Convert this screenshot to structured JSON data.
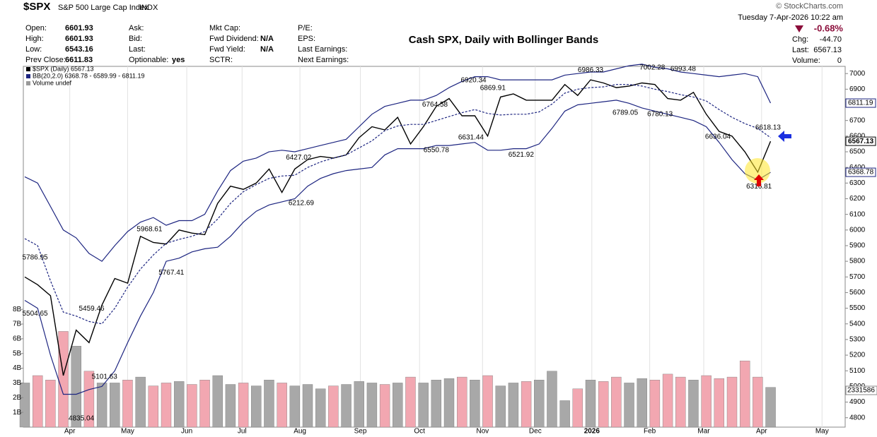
{
  "header": {
    "symbol": "$SPX",
    "name": "S&P 500 Large Cap Index",
    "exchange": "INDX",
    "copyright": "© StockCharts.com",
    "datetime": "Tuesday  7-Apr-2026  10:22 am",
    "columns": [
      [
        [
          "Open:",
          "6601.93"
        ],
        [
          "High:",
          "6601.93"
        ],
        [
          "Low:",
          "6543.16"
        ],
        [
          "Prev Close:",
          "6611.83"
        ]
      ],
      [
        [
          "Ask:"
        ],
        [
          "Bid:"
        ],
        [
          "Last:"
        ],
        [
          "Optionable:",
          "yes"
        ]
      ],
      [
        [
          "Mkt Cap:"
        ],
        [
          "Fwd Dividend:",
          "N/A"
        ],
        [
          "Fwd Yield:",
          "N/A"
        ],
        [
          "SCTR:"
        ]
      ],
      [
        [
          "P/E:"
        ],
        [
          "EPS:"
        ],
        [
          "Last Earnings:"
        ],
        [
          "Next Earnings:"
        ]
      ]
    ],
    "change_pct": "-0.68%",
    "stats": [
      [
        "Chg:",
        "-44.70"
      ],
      [
        "Last:",
        "6567.13"
      ],
      [
        "Volume:",
        "0"
      ]
    ],
    "volume_tag": "2331586"
  },
  "chart_data": {
    "type": "line",
    "title": "Cash SPX, Daily with Bollinger Bands",
    "legend": [
      "$SPX (Daily) 6567.13",
      "BB(20,2.0) 6368.78 - 6589.99 - 6811.19",
      "Volume undef"
    ],
    "xlim": [
      0,
      63.8
    ],
    "xticks": [
      {
        "value": 3.5,
        "label": "Apr"
      },
      {
        "value": 8.0,
        "label": "May"
      },
      {
        "value": 12.6,
        "label": "Jun"
      },
      {
        "value": 16.9,
        "label": "Jul"
      },
      {
        "value": 21.4,
        "label": "Aug"
      },
      {
        "value": 26.1,
        "label": "Sep"
      },
      {
        "value": 30.7,
        "label": "Oct"
      },
      {
        "value": 35.6,
        "label": "Nov"
      },
      {
        "value": 39.7,
        "label": "Dec"
      },
      {
        "value": 44.1,
        "label": "2026"
      },
      {
        "value": 48.6,
        "label": "Feb"
      },
      {
        "value": 52.8,
        "label": "Mar"
      },
      {
        "value": 57.3,
        "label": "Apr"
      },
      {
        "value": 62.0,
        "label": "May"
      }
    ],
    "ylim": [
      4740,
      7046
    ],
    "yticks": [
      4800,
      4900,
      5000,
      5100,
      5200,
      5300,
      5400,
      5500,
      5600,
      5700,
      5800,
      5900,
      6000,
      6100,
      6200,
      6300,
      6400,
      6500,
      6600,
      6700,
      6800,
      6900,
      7000
    ],
    "y2lim": [
      0,
      24.5
    ],
    "y2ticks": [
      {
        "value": 1,
        "label": "1B"
      },
      {
        "value": 2,
        "label": "2B"
      },
      {
        "value": 3,
        "label": "3B"
      },
      {
        "value": 4,
        "label": "4B"
      },
      {
        "value": 5,
        "label": "5B"
      },
      {
        "value": 6,
        "label": "6B"
      },
      {
        "value": 7,
        "label": "7B"
      },
      {
        "value": 8,
        "label": "8B"
      }
    ],
    "series": [
      {
        "color": "#000000",
        "values": [
          5700,
          5650,
          5580,
          5070,
          5360,
          5280,
          5520,
          5690,
          5660,
          5960,
          5920,
          5910,
          6000,
          5980,
          5970,
          6170,
          6280,
          6260,
          6300,
          6390,
          6240,
          6390,
          6450,
          6470,
          6460,
          6480,
          6590,
          6660,
          6640,
          6720,
          6550,
          6660,
          6790,
          6840,
          6730,
          6730,
          6600,
          6850,
          6870,
          6830,
          6830,
          6830,
          6930,
          6860,
          6960,
          6940,
          6910,
          6920,
          6940,
          6930,
          6840,
          6830,
          6880,
          6740,
          6630,
          6600,
          6500,
          6370,
          6567.13
        ]
      },
      {
        "color": "#1c2480",
        "values": [
          6340,
          6300,
          6150,
          6000,
          5950,
          5850,
          5800,
          5900,
          5990,
          6050,
          6080,
          6030,
          6060,
          6060,
          6100,
          6250,
          6380,
          6440,
          6460,
          6500,
          6510,
          6500,
          6520,
          6540,
          6560,
          6580,
          6660,
          6740,
          6790,
          6810,
          6830,
          6830,
          6860,
          6910,
          6950,
          6980,
          6980,
          6960,
          6960,
          6960,
          6960,
          6960,
          6990,
          7000,
          7010,
          7010,
          7030,
          7050,
          7060,
          7040,
          7030,
          7010,
          7000,
          6990,
          6980,
          6990,
          7000,
          6980,
          6811.19
        ]
      },
      {
        "color": "#1c2480",
        "dashed": true,
        "values": [
          5945,
          5900,
          5675,
          5475,
          5450,
          5415,
          5400,
          5500,
          5635,
          5750,
          5840,
          5915,
          5940,
          5960,
          5990,
          6070,
          6170,
          6245,
          6290,
          6330,
          6345,
          6350,
          6400,
          6435,
          6460,
          6480,
          6525,
          6570,
          6635,
          6665,
          6675,
          6675,
          6700,
          6725,
          6750,
          6770,
          6745,
          6735,
          6740,
          6740,
          6755,
          6805,
          6875,
          6900,
          6910,
          6915,
          6930,
          6930,
          6920,
          6900,
          6885,
          6865,
          6850,
          6825,
          6770,
          6720,
          6680,
          6650,
          6589.99
        ]
      },
      {
        "color": "#1c2480",
        "values": [
          5550,
          5500,
          5200,
          4950,
          4950,
          4980,
          5000,
          5100,
          5280,
          5450,
          5600,
          5800,
          5820,
          5860,
          5880,
          5890,
          5960,
          6050,
          6120,
          6160,
          6180,
          6200,
          6280,
          6330,
          6360,
          6380,
          6390,
          6400,
          6480,
          6520,
          6520,
          6520,
          6540,
          6540,
          6550,
          6560,
          6510,
          6510,
          6520,
          6520,
          6550,
          6650,
          6760,
          6800,
          6810,
          6820,
          6830,
          6810,
          6780,
          6760,
          6740,
          6720,
          6700,
          6660,
          6560,
          6450,
          6360,
          6320,
          6368.78
        ]
      },
      {
        "axis": "y2",
        "up_color": "#a8a8a8",
        "down_color": "#f2a7b1",
        "values": [
          3.0,
          3.5,
          3.2,
          6.5,
          5.5,
          3.8,
          3.0,
          3.0,
          3.2,
          3.4,
          2.8,
          3.0,
          3.1,
          2.9,
          3.2,
          3.5,
          2.9,
          3.0,
          2.8,
          3.2,
          3.0,
          2.8,
          2.9,
          2.6,
          2.8,
          2.9,
          3.1,
          3.0,
          2.9,
          3.0,
          3.4,
          3.0,
          3.2,
          3.3,
          3.4,
          3.2,
          3.5,
          2.8,
          3.0,
          3.1,
          3.2,
          3.8,
          1.8,
          2.6,
          3.2,
          3.1,
          3.4,
          3.0,
          3.3,
          3.2,
          3.6,
          3.4,
          3.2,
          3.5,
          3.3,
          3.4,
          4.5,
          3.4,
          2.7
        ]
      }
    ],
    "high_labels": [
      {
        "x": 0.8,
        "value": 5786.95
      },
      {
        "x": 5.2,
        "value": 5459.46
      },
      {
        "x": 9.7,
        "value": 5968.61
      },
      {
        "x": 21.3,
        "value": 6427.02
      },
      {
        "x": 31.9,
        "value": 6764.58
      },
      {
        "x": 34.9,
        "value": 6920.34
      },
      {
        "x": 36.4,
        "value": 6869.91
      },
      {
        "x": 44.0,
        "value": 6986.33
      },
      {
        "x": 48.8,
        "value": 7002.28
      },
      {
        "x": 51.2,
        "value": 6993.48
      },
      {
        "x": 57.8,
        "value": 6618.13
      }
    ],
    "low_labels": [
      {
        "x": 0.8,
        "value": 5504.65
      },
      {
        "x": 4.4,
        "value": 4835.04
      },
      {
        "x": 6.2,
        "value": 5101.63
      },
      {
        "x": 11.4,
        "value": 5767.41
      },
      {
        "x": 21.5,
        "value": 6212.69
      },
      {
        "x": 32.0,
        "value": 6550.78
      },
      {
        "x": 34.7,
        "value": 6631.44
      },
      {
        "x": 38.6,
        "value": 6521.92
      },
      {
        "x": 46.7,
        "value": 6789.05
      },
      {
        "x": 49.4,
        "value": 6780.13
      },
      {
        "x": 53.9,
        "value": 6636.04
      },
      {
        "x": 57.1,
        "value": 6316.81
      }
    ],
    "grid": true
  }
}
